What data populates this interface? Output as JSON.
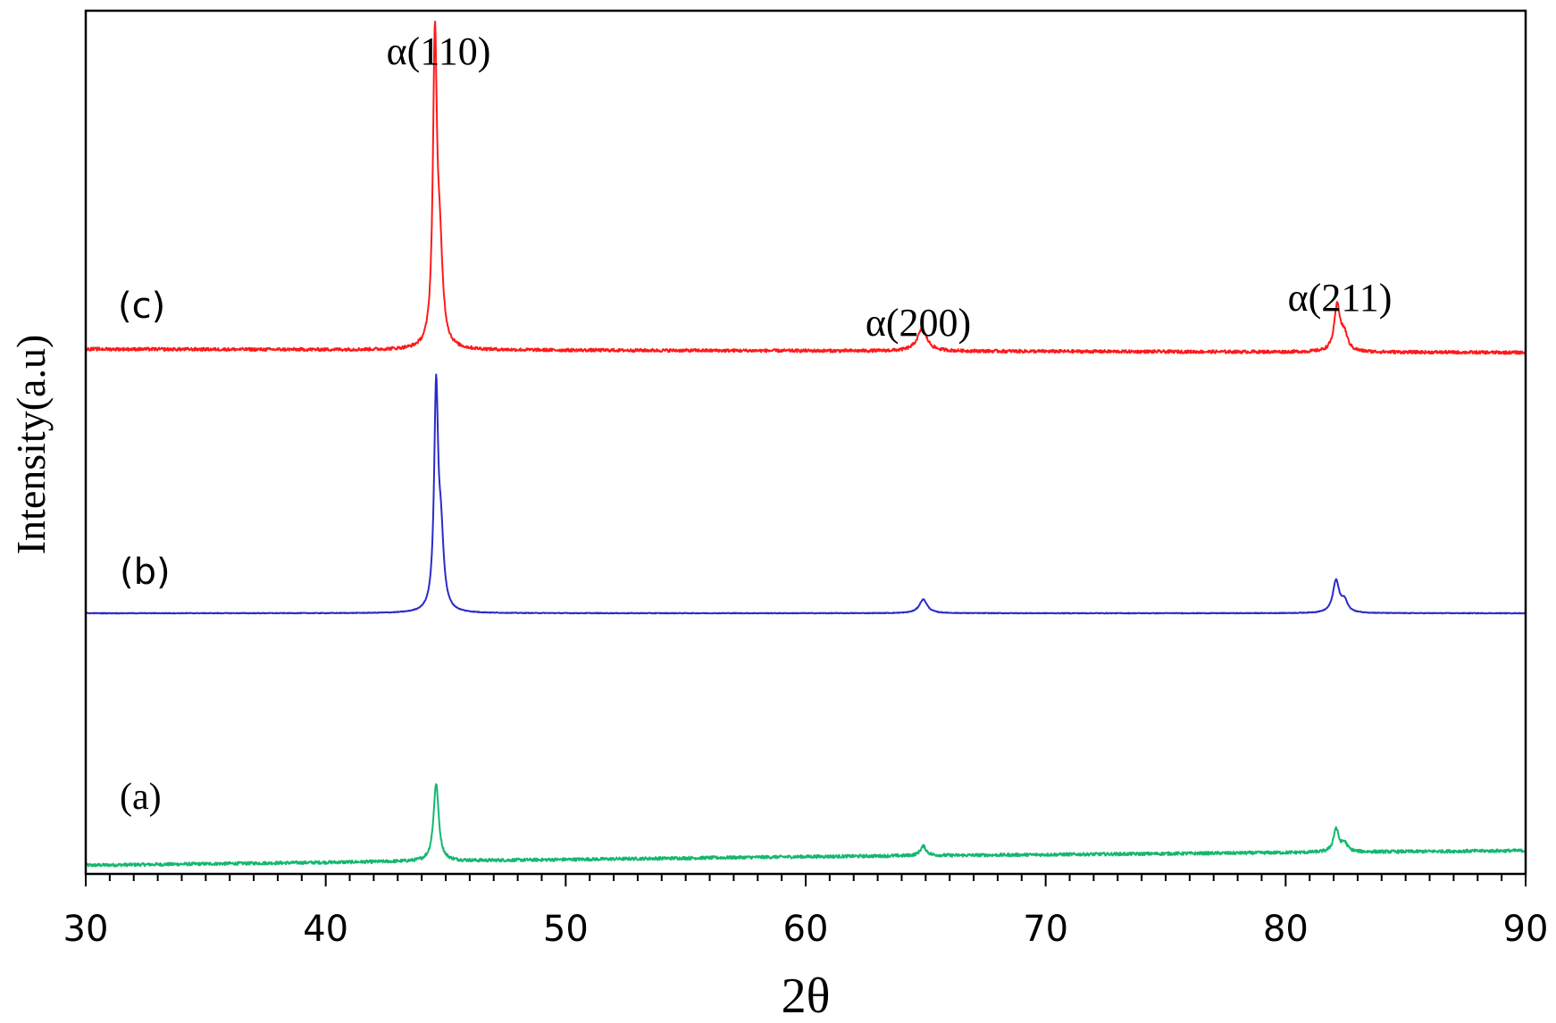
{
  "chart_data": {
    "type": "line",
    "xlabel": "2θ",
    "ylabel": "Intensity(a.u)",
    "xlim": [
      30,
      90
    ],
    "ylim": [
      0,
      100
    ],
    "x_ticks": [
      "30",
      "40",
      "50",
      "60",
      "70",
      "80",
      "90"
    ],
    "y_ticks": [],
    "grid": false,
    "legend": "none",
    "annotations": [
      {
        "text": "α(110)",
        "x": 44.6
      },
      {
        "text": "α(200)",
        "x": 64.9
      },
      {
        "text": "α(211)",
        "x": 82.1
      }
    ],
    "series": [
      {
        "name": "(a)",
        "color": "#14b86e",
        "baseline": [
          [
            30,
            1.0
          ],
          [
            60,
            2.0
          ],
          [
            90,
            2.7
          ]
        ],
        "peaks": [
          {
            "x": 44.6,
            "height": 9.0,
            "width": 0.13
          },
          {
            "x": 64.9,
            "height": 1.1,
            "width": 0.15
          },
          {
            "x": 82.1,
            "height": 2.7,
            "width": 0.13
          },
          {
            "x": 82.45,
            "height": 1.0,
            "width": 0.15
          }
        ],
        "noise": 0.18
      },
      {
        "name": "(b)",
        "color": "#2b2bc8",
        "baseline": [
          [
            30,
            30.2
          ],
          [
            90,
            30.2
          ]
        ],
        "peaks": [
          {
            "x": 44.6,
            "height": 25.0,
            "width": 0.1
          },
          {
            "x": 44.8,
            "height": 8.0,
            "width": 0.14
          },
          {
            "x": 64.9,
            "height": 1.6,
            "width": 0.2
          },
          {
            "x": 82.1,
            "height": 3.7,
            "width": 0.16
          },
          {
            "x": 82.45,
            "height": 1.3,
            "width": 0.16
          }
        ],
        "noise": 0.04
      },
      {
        "name": "(c)",
        "color": "#ff1a1a",
        "baseline": [
          [
            30,
            60.8
          ],
          [
            90,
            60.4
          ]
        ],
        "peaks": [
          {
            "x": 44.55,
            "height": 34.5,
            "width": 0.1
          },
          {
            "x": 44.75,
            "height": 10.0,
            "width": 0.15
          },
          {
            "x": 64.85,
            "height": 2.5,
            "width": 0.25
          },
          {
            "x": 82.15,
            "height": 5.3,
            "width": 0.15
          },
          {
            "x": 82.45,
            "height": 1.8,
            "width": 0.16
          }
        ],
        "noise": 0.18
      }
    ]
  }
}
